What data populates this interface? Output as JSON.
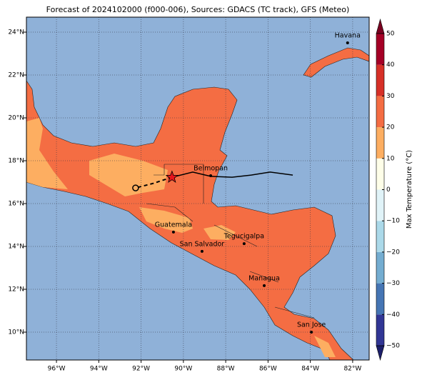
{
  "title": "Forecast of 2024102000 (f000-006), Sources: GDACS (TC track), GFS (Meteo)",
  "map": {
    "xlim": [
      -97.42,
      -81.22
    ],
    "ylim": [
      8.7,
      24.7
    ],
    "xticks": [
      {
        "value": -96,
        "label": "96°W"
      },
      {
        "value": -94,
        "label": "94°W"
      },
      {
        "value": -92,
        "label": "92°W"
      },
      {
        "value": -90,
        "label": "90°W"
      },
      {
        "value": -88,
        "label": "88°W"
      },
      {
        "value": -86,
        "label": "86°W"
      },
      {
        "value": -84,
        "label": "84°W"
      },
      {
        "value": -82,
        "label": "82°W"
      }
    ],
    "yticks": [
      {
        "value": 10,
        "label": "10°N"
      },
      {
        "value": 12,
        "label": "12°N"
      },
      {
        "value": 14,
        "label": "14°N"
      },
      {
        "value": 16,
        "label": "16°N"
      },
      {
        "value": 18,
        "label": "18°N"
      },
      {
        "value": 20,
        "label": "20°N"
      },
      {
        "value": 22,
        "label": "22°N"
      },
      {
        "value": 24,
        "label": "24°N"
      }
    ],
    "cities": [
      {
        "name": "Havana",
        "lon": -82.24,
        "lat": 23.5
      },
      {
        "name": "Belmopan",
        "lon": -88.71,
        "lat": 17.3
      },
      {
        "name": "Guatemala",
        "lon": -90.47,
        "lat": 14.67
      },
      {
        "name": "Tegucigalpa",
        "lon": -87.13,
        "lat": 14.13
      },
      {
        "name": "San Salvador",
        "lon": -89.12,
        "lat": 13.77
      },
      {
        "name": "Managua",
        "lon": -86.18,
        "lat": 12.17
      },
      {
        "name": "San Jose",
        "lon": -83.95,
        "lat": 10.0
      }
    ],
    "track": {
      "lon": [
        -84.83,
        -85.9,
        -86.8,
        -87.7,
        -88.71,
        -89.56,
        -90.54
      ],
      "lat": [
        17.33,
        17.47,
        17.33,
        17.23,
        17.27,
        17.47,
        17.23
      ]
    },
    "forecast_track": {
      "lon": [
        -90.54,
        -91.4,
        -92.26
      ],
      "lat": [
        17.23,
        16.95,
        16.73
      ]
    }
  },
  "colorbar": {
    "label": "Max Temperature (°C)",
    "ticks": [
      {
        "value": -50,
        "label": "−50"
      },
      {
        "value": -40,
        "label": "−40"
      },
      {
        "value": -30,
        "label": "−30"
      },
      {
        "value": -20,
        "label": "−20"
      },
      {
        "value": -10,
        "label": "−10"
      },
      0,
      10,
      20,
      30,
      40,
      50
    ],
    "colors": [
      "#313695",
      "#4575b4",
      "#74add1",
      "#abd9e9",
      "#e0f3f8",
      "#fefee8",
      "#fdae61",
      "#f46d43",
      "#d73027",
      "#a50026"
    ],
    "extend_colors": [
      "#1c1f6b",
      "#7a0020"
    ]
  }
}
